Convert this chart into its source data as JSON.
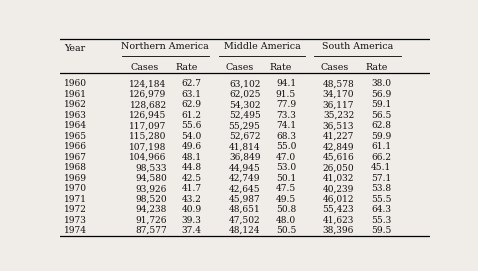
{
  "years": [
    "1960",
    "1961",
    "1962",
    "1963",
    "1964",
    "1965",
    "1966",
    "1967",
    "1968",
    "1969",
    "1970",
    "1971",
    "1972",
    "1973",
    "1974"
  ],
  "north_cases": [
    "124,184",
    "126,979",
    "128,682",
    "126,945",
    "117,097",
    "115,280",
    "107,198",
    "104,966",
    "98,533",
    "94,580",
    "93,926",
    "98,520",
    "94,238",
    "91,726",
    "87,577"
  ],
  "north_rate": [
    "62.7",
    "63.1",
    "62.9",
    "61.2",
    "55.6",
    "54.0",
    "49.6",
    "48.1",
    "44.8",
    "42.5",
    "41.7",
    "43.2",
    "40.9",
    "39.3",
    "37.4"
  ],
  "mid_cases": [
    "63,102",
    "62,025",
    "54,302",
    "52,495",
    "55,295",
    "52,672",
    "41,814",
    "36,849",
    "44,945",
    "42,749",
    "42,645",
    "45,987",
    "48,651",
    "47,502",
    "48,124"
  ],
  "mid_rate": [
    "94.1",
    "91.5",
    "77.9",
    "73.3",
    "74.1",
    "68.3",
    "55.0",
    "47.0",
    "53.0",
    "50.1",
    "47.5",
    "49.5",
    "50.8",
    "48.0",
    "50.5"
  ],
  "south_cases": [
    "48,578",
    "34,170",
    "36,117",
    "35,232",
    "36,513",
    "41,227",
    "42,849",
    "45,616",
    "26,050",
    "41,032",
    "40,239",
    "46,012",
    "55,423",
    "41,623",
    "38,396"
  ],
  "south_rate": [
    "38.0",
    "56.9",
    "59.1",
    "56.5",
    "62.8",
    "59.9",
    "61.1",
    "66.2",
    "45.1",
    "57.1",
    "53.8",
    "55.5",
    "64.3",
    "55.3",
    "59.5"
  ],
  "region_headers": [
    "Northern America",
    "Middle America",
    "South America"
  ],
  "sub_headers": [
    "Cases",
    "Rate",
    "Cases",
    "Rate",
    "Cases",
    "Rate"
  ],
  "year_label": "Year",
  "bg_color": "#f0ede8",
  "text_color": "#111111",
  "fontsize": 6.5,
  "header_fontsize": 6.8
}
